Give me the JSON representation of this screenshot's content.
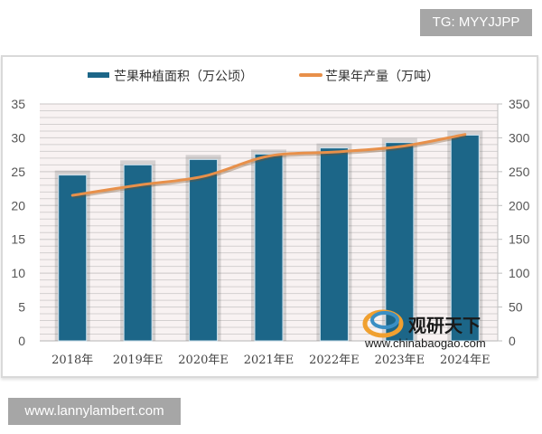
{
  "watermarks": {
    "top": "TG: MYYJJPP",
    "bottom": "www.lannylambert.com"
  },
  "legend": {
    "bar_label": "芒果种植面积（万公顷）",
    "line_label": "芒果年产量（万吨）"
  },
  "logo": {
    "name": "观研天下",
    "url": "www.chinabaogao.com"
  },
  "colors": {
    "bar": "#1c6688",
    "line": "#e8904a",
    "plot_bg": "#f8f2f2",
    "grid": "#d4d0d0"
  },
  "chart_data": {
    "type": "bar",
    "title": "",
    "categories": [
      "2018年",
      "2019年E",
      "2020年E",
      "2021年E",
      "2022年E",
      "2023年E",
      "2024年E"
    ],
    "series": [
      {
        "name": "芒果种植面积（万公顷）",
        "type": "bar",
        "axis": "left",
        "values": [
          24.5,
          26.0,
          26.8,
          27.6,
          28.5,
          29.3,
          30.4
        ]
      },
      {
        "name": "芒果年产量（万吨）",
        "type": "line",
        "axis": "right",
        "values": [
          215,
          230,
          243,
          273,
          279,
          287,
          305
        ]
      }
    ],
    "left_axis": {
      "ylim": [
        0,
        35
      ],
      "ticks": [
        0,
        5,
        10,
        15,
        20,
        25,
        30,
        35
      ]
    },
    "right_axis": {
      "ylim": [
        0,
        350
      ],
      "ticks": [
        0,
        50,
        100,
        150,
        200,
        250,
        300,
        350
      ]
    },
    "xlabel": "",
    "ylabel": "",
    "grid": true,
    "legend_position": "top"
  }
}
